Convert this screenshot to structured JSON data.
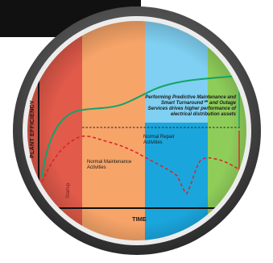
{
  "labels": {
    "y_axis": "PLANT EFFICIENCY",
    "x_axis": "TIME",
    "startup": "Startup",
    "normal_maintenance": "Normal Maintenance Activities",
    "normal_repair": "Normal Repair Activities",
    "callout": "Performing Predictive Maintenance and Smart Turnaround℠ and Outage Services drives higher performance of electrical distribution assets"
  },
  "colors": {
    "zone_startup": "#e25a4a",
    "zone_normal_maintenance": "#f7a468",
    "zone_light_blue": "#7fd0f2",
    "zone_repair": "#1aa6dd",
    "zone_green": "#8fcd5a",
    "green_curve": "#12a36a",
    "red_curve": "#d8262d",
    "bezel": "#555555",
    "header_bar": "#111111"
  },
  "icons": {
    "up_arrow": "green-up-arrow-icon",
    "down_arrow": "red-down-arrow-icon",
    "time_arrow": "time-arrow-icon",
    "efficiency_arrow": "efficiency-arrow-icon"
  }
}
